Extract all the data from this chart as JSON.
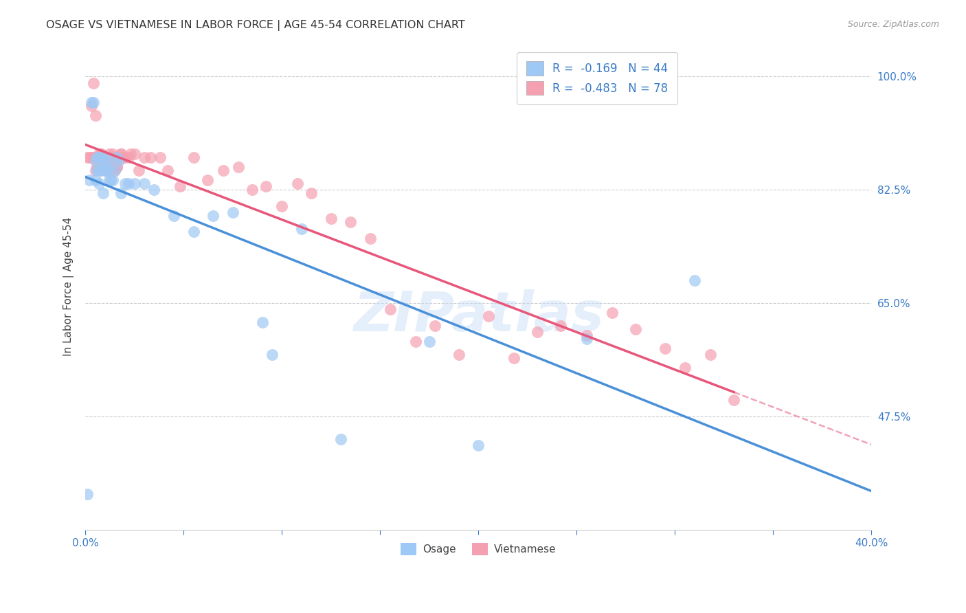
{
  "title": "OSAGE VS VIETNAMESE IN LABOR FORCE | AGE 45-54 CORRELATION CHART",
  "source": "Source: ZipAtlas.com",
  "ylabel": "In Labor Force | Age 45-54",
  "xmin": 0.0,
  "xmax": 0.4,
  "ymin": 0.3,
  "ymax": 1.05,
  "xticks": [
    0.0,
    0.05,
    0.1,
    0.15,
    0.2,
    0.25,
    0.3,
    0.35,
    0.4
  ],
  "yticks": [
    0.475,
    0.65,
    0.825,
    1.0
  ],
  "right_yticklabels": [
    "47.5%",
    "65.0%",
    "82.5%",
    "100.0%"
  ],
  "legend_label_1": "R =  -0.169   N = 44",
  "legend_label_2": "R =  -0.483   N = 78",
  "watermark": "ZIPatlas",
  "osage_color": "#9ec8f5",
  "vietnamese_color": "#f5a0b0",
  "osage_line_color": "#4a90d9",
  "vietnamese_line_color": "#e8567a",
  "background_color": "#ffffff",
  "grid_color": "#cccccc",
  "title_color": "#333333",
  "axis_label_color": "#444444",
  "tick_color": "#3a7bc8",
  "osage_x": [
    0.001,
    0.002,
    0.003,
    0.004,
    0.005,
    0.005,
    0.006,
    0.006,
    0.007,
    0.007,
    0.008,
    0.008,
    0.009,
    0.01,
    0.01,
    0.011,
    0.011,
    0.012,
    0.012,
    0.013,
    0.014,
    0.015,
    0.016,
    0.017,
    0.018,
    0.02,
    0.022,
    0.025,
    0.03,
    0.035,
    0.045,
    0.055,
    0.065,
    0.075,
    0.09,
    0.095,
    0.11,
    0.13,
    0.175,
    0.2,
    0.255,
    0.31,
    0.009,
    0.007
  ],
  "osage_y": [
    0.355,
    0.84,
    0.96,
    0.96,
    0.87,
    0.84,
    0.855,
    0.875,
    0.875,
    0.855,
    0.855,
    0.875,
    0.86,
    0.855,
    0.875,
    0.855,
    0.87,
    0.84,
    0.86,
    0.84,
    0.84,
    0.855,
    0.875,
    0.87,
    0.82,
    0.835,
    0.835,
    0.835,
    0.835,
    0.825,
    0.785,
    0.76,
    0.785,
    0.79,
    0.62,
    0.57,
    0.765,
    0.44,
    0.59,
    0.43,
    0.595,
    0.685,
    0.82,
    0.835
  ],
  "vietnamese_x": [
    0.001,
    0.002,
    0.003,
    0.004,
    0.004,
    0.005,
    0.005,
    0.006,
    0.006,
    0.007,
    0.007,
    0.007,
    0.008,
    0.008,
    0.009,
    0.009,
    0.01,
    0.01,
    0.011,
    0.011,
    0.012,
    0.012,
    0.013,
    0.013,
    0.014,
    0.014,
    0.015,
    0.015,
    0.016,
    0.017,
    0.018,
    0.019,
    0.02,
    0.022,
    0.023,
    0.025,
    0.027,
    0.03,
    0.033,
    0.038,
    0.042,
    0.048,
    0.055,
    0.062,
    0.07,
    0.078,
    0.085,
    0.092,
    0.1,
    0.108,
    0.115,
    0.125,
    0.135,
    0.145,
    0.155,
    0.168,
    0.178,
    0.19,
    0.205,
    0.218,
    0.23,
    0.242,
    0.255,
    0.268,
    0.28,
    0.295,
    0.305,
    0.318,
    0.33,
    0.003,
    0.005,
    0.005,
    0.007,
    0.008,
    0.009,
    0.015,
    0.016,
    0.018
  ],
  "vietnamese_y": [
    0.875,
    0.875,
    0.875,
    0.99,
    0.875,
    0.875,
    0.855,
    0.875,
    0.86,
    0.88,
    0.875,
    0.86,
    0.875,
    0.88,
    0.875,
    0.86,
    0.855,
    0.875,
    0.86,
    0.875,
    0.875,
    0.88,
    0.875,
    0.855,
    0.88,
    0.875,
    0.855,
    0.875,
    0.86,
    0.875,
    0.88,
    0.875,
    0.875,
    0.875,
    0.88,
    0.88,
    0.855,
    0.875,
    0.875,
    0.875,
    0.855,
    0.83,
    0.875,
    0.84,
    0.855,
    0.86,
    0.825,
    0.83,
    0.8,
    0.835,
    0.82,
    0.78,
    0.775,
    0.75,
    0.64,
    0.59,
    0.615,
    0.57,
    0.63,
    0.565,
    0.605,
    0.615,
    0.6,
    0.635,
    0.61,
    0.58,
    0.55,
    0.57,
    0.5,
    0.955,
    0.94,
    0.875,
    0.875,
    0.88,
    0.875,
    0.875,
    0.86,
    0.88
  ]
}
